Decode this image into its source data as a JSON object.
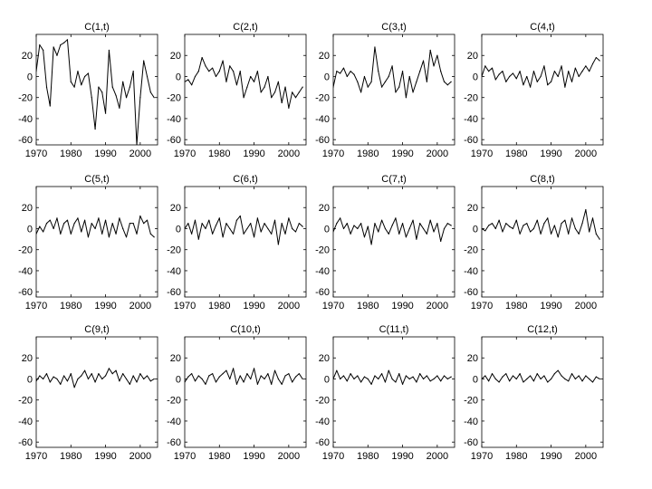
{
  "chart_data": [
    {
      "type": "line",
      "title": "C(1,t)",
      "x": [
        1970,
        1971,
        1972,
        1973,
        1974,
        1975,
        1976,
        1977,
        1978,
        1979,
        1980,
        1981,
        1982,
        1983,
        1984,
        1985,
        1986,
        1987,
        1988,
        1989,
        1990,
        1991,
        1992,
        1993,
        1994,
        1995,
        1996,
        1997,
        1998,
        1999,
        2000,
        2001,
        2002,
        2003,
        2004
      ],
      "y": [
        5,
        30,
        25,
        -10,
        -28,
        28,
        20,
        30,
        32,
        35,
        -5,
        -10,
        5,
        -8,
        0,
        3,
        -20,
        -50,
        -10,
        -15,
        -35,
        25,
        -10,
        -18,
        -30,
        -5,
        -20,
        -10,
        5,
        -65,
        -20,
        15,
        0,
        -15,
        -20
      ],
      "xlim": [
        1970,
        2005
      ],
      "ylim": [
        -65,
        40
      ],
      "xticks": [
        1970,
        1980,
        1990,
        2000
      ],
      "yticks": [
        20,
        0,
        -20,
        -40,
        -60
      ],
      "xtick_labels": [
        "1970",
        "1980",
        "1990",
        "2000"
      ],
      "ytick_labels": [
        "20",
        "0",
        "-20",
        "-40",
        "-60"
      ]
    },
    {
      "type": "line",
      "title": "C(2,t)",
      "x": [
        1970,
        1971,
        1972,
        1973,
        1974,
        1975,
        1976,
        1977,
        1978,
        1979,
        1980,
        1981,
        1982,
        1983,
        1984,
        1985,
        1986,
        1987,
        1988,
        1989,
        1990,
        1991,
        1992,
        1993,
        1994,
        1995,
        1996,
        1997,
        1998,
        1999,
        2000,
        2001,
        2002,
        2003,
        2004
      ],
      "y": [
        -5,
        -3,
        -8,
        0,
        5,
        18,
        10,
        5,
        8,
        0,
        5,
        15,
        -5,
        10,
        5,
        -8,
        5,
        -20,
        -10,
        0,
        -5,
        5,
        -15,
        -10,
        0,
        -20,
        -15,
        -5,
        -25,
        -10,
        -30,
        -15,
        -20,
        -15,
        -10
      ],
      "xlim": [
        1970,
        2005
      ],
      "ylim": [
        -65,
        40
      ],
      "xticks": [
        1970,
        1980,
        1990,
        2000
      ],
      "yticks": [
        20,
        0,
        -20,
        -40,
        -60
      ],
      "xtick_labels": [
        "1970",
        "1980",
        "1990",
        "2000"
      ],
      "ytick_labels": [
        "20",
        "0",
        "-20",
        "-40",
        "-60"
      ]
    },
    {
      "type": "line",
      "title": "C(3,t)",
      "x": [
        1970,
        1971,
        1972,
        1973,
        1974,
        1975,
        1976,
        1977,
        1978,
        1979,
        1980,
        1981,
        1982,
        1983,
        1984,
        1985,
        1986,
        1987,
        1988,
        1989,
        1990,
        1991,
        1992,
        1993,
        1994,
        1995,
        1996,
        1997,
        1998,
        1999,
        2000,
        2001,
        2002,
        2003,
        2004
      ],
      "y": [
        -10,
        5,
        3,
        8,
        0,
        5,
        2,
        -5,
        -15,
        0,
        -10,
        -5,
        28,
        5,
        -10,
        -5,
        0,
        10,
        -15,
        -10,
        5,
        -20,
        0,
        -15,
        -5,
        5,
        15,
        -5,
        25,
        10,
        20,
        5,
        -5,
        -8,
        -5
      ],
      "xlim": [
        1970,
        2005
      ],
      "ylim": [
        -65,
        40
      ],
      "xticks": [
        1970,
        1980,
        1990,
        2000
      ],
      "yticks": [
        20,
        0,
        -20,
        -40,
        -60
      ],
      "xtick_labels": [
        "1970",
        "1980",
        "1990",
        "2000"
      ],
      "ytick_labels": [
        "20",
        "0",
        "-20",
        "-40",
        "-60"
      ]
    },
    {
      "type": "line",
      "title": "C(4,t)",
      "x": [
        1970,
        1971,
        1972,
        1973,
        1974,
        1975,
        1976,
        1977,
        1978,
        1979,
        1980,
        1981,
        1982,
        1983,
        1984,
        1985,
        1986,
        1987,
        1988,
        1989,
        1990,
        1991,
        1992,
        1993,
        1994,
        1995,
        1996,
        1997,
        1998,
        1999,
        2000,
        2001,
        2002,
        2003,
        2004
      ],
      "y": [
        0,
        10,
        5,
        8,
        -3,
        2,
        5,
        -5,
        0,
        3,
        -2,
        5,
        -8,
        0,
        -10,
        5,
        -5,
        0,
        10,
        -8,
        -5,
        5,
        0,
        10,
        -10,
        5,
        -5,
        8,
        0,
        5,
        10,
        5,
        12,
        18,
        15
      ],
      "xlim": [
        1970,
        2005
      ],
      "ylim": [
        -65,
        40
      ],
      "xticks": [
        1970,
        1980,
        1990,
        2000
      ],
      "yticks": [
        20,
        0,
        -20,
        -40,
        -60
      ],
      "xtick_labels": [
        "1970",
        "1980",
        "1990",
        "2000"
      ],
      "ytick_labels": [
        "20",
        "0",
        "-20",
        "-40",
        "-60"
      ]
    },
    {
      "type": "line",
      "title": "C(5,t)",
      "x": [
        1970,
        1971,
        1972,
        1973,
        1974,
        1975,
        1976,
        1977,
        1978,
        1979,
        1980,
        1981,
        1982,
        1983,
        1984,
        1985,
        1986,
        1987,
        1988,
        1989,
        1990,
        1991,
        1992,
        1993,
        1994,
        1995,
        1996,
        1997,
        1998,
        1999,
        2000,
        2001,
        2002,
        2003,
        2004
      ],
      "y": [
        -5,
        2,
        -3,
        5,
        8,
        0,
        10,
        -5,
        5,
        8,
        -5,
        5,
        10,
        -3,
        8,
        -8,
        5,
        0,
        10,
        -5,
        8,
        -8,
        5,
        -5,
        10,
        0,
        -8,
        5,
        5,
        -5,
        12,
        5,
        8,
        -5,
        -8
      ],
      "xlim": [
        1970,
        2005
      ],
      "ylim": [
        -65,
        40
      ],
      "xticks": [
        1970,
        1980,
        1990,
        2000
      ],
      "yticks": [
        20,
        0,
        -20,
        -40,
        -60
      ],
      "xtick_labels": [
        "1970",
        "1980",
        "1990",
        "2000"
      ],
      "ytick_labels": [
        "20",
        "0",
        "-20",
        "-40",
        "-60"
      ]
    },
    {
      "type": "line",
      "title": "C(6,t)",
      "x": [
        1970,
        1971,
        1972,
        1973,
        1974,
        1975,
        1976,
        1977,
        1978,
        1979,
        1980,
        1981,
        1982,
        1983,
        1984,
        1985,
        1986,
        1987,
        1988,
        1989,
        1990,
        1991,
        1992,
        1993,
        1994,
        1995,
        1996,
        1997,
        1998,
        1999,
        2000,
        2001,
        2002,
        2003,
        2004
      ],
      "y": [
        0,
        5,
        -5,
        8,
        -10,
        5,
        0,
        8,
        -5,
        3,
        10,
        -8,
        5,
        0,
        -5,
        8,
        12,
        -5,
        0,
        5,
        -8,
        10,
        -3,
        5,
        0,
        -5,
        8,
        -15,
        5,
        -5,
        10,
        0,
        -3,
        5,
        2
      ],
      "xlim": [
        1970,
        2005
      ],
      "ylim": [
        -65,
        40
      ],
      "xticks": [
        1970,
        1980,
        1990,
        2000
      ],
      "yticks": [
        20,
        0,
        -20,
        -40,
        -60
      ],
      "xtick_labels": [
        "1970",
        "1980",
        "1990",
        "2000"
      ],
      "ytick_labels": [
        "20",
        "0",
        "-20",
        "-40",
        "-60"
      ]
    },
    {
      "type": "line",
      "title": "C(7,t)",
      "x": [
        1970,
        1971,
        1972,
        1973,
        1974,
        1975,
        1976,
        1977,
        1978,
        1979,
        1980,
        1981,
        1982,
        1983,
        1984,
        1985,
        1986,
        1987,
        1988,
        1989,
        1990,
        1991,
        1992,
        1993,
        1994,
        1995,
        1996,
        1997,
        1998,
        1999,
        2000,
        2001,
        2002,
        2003,
        2004
      ],
      "y": [
        -3,
        5,
        10,
        0,
        5,
        -5,
        3,
        0,
        5,
        -8,
        2,
        -15,
        5,
        -3,
        8,
        0,
        -5,
        3,
        10,
        -5,
        5,
        -8,
        0,
        8,
        -10,
        5,
        0,
        -5,
        8,
        -3,
        5,
        -12,
        0,
        5,
        3
      ],
      "xlim": [
        1970,
        2005
      ],
      "ylim": [
        -65,
        40
      ],
      "xticks": [
        1970,
        1980,
        1990,
        2000
      ],
      "yticks": [
        20,
        0,
        -20,
        -40,
        -60
      ],
      "xtick_labels": [
        "1970",
        "1980",
        "1990",
        "2000"
      ],
      "ytick_labels": [
        "20",
        "0",
        "-20",
        "-40",
        "-60"
      ]
    },
    {
      "type": "line",
      "title": "C(8,t)",
      "x": [
        1970,
        1971,
        1972,
        1973,
        1974,
        1975,
        1976,
        1977,
        1978,
        1979,
        1980,
        1981,
        1982,
        1983,
        1984,
        1985,
        1986,
        1987,
        1988,
        1989,
        1990,
        1991,
        1992,
        1993,
        1994,
        1995,
        1996,
        1997,
        1998,
        1999,
        2000,
        2001,
        2002,
        2003,
        2004
      ],
      "y": [
        0,
        -2,
        3,
        5,
        0,
        8,
        -3,
        5,
        2,
        0,
        8,
        -5,
        3,
        5,
        -3,
        0,
        8,
        -5,
        5,
        10,
        -5,
        3,
        -8,
        5,
        8,
        -5,
        10,
        0,
        -5,
        5,
        18,
        -3,
        10,
        -5,
        -10
      ],
      "xlim": [
        1970,
        2005
      ],
      "ylim": [
        -65,
        40
      ],
      "xticks": [
        1970,
        1980,
        1990,
        2000
      ],
      "yticks": [
        20,
        0,
        -20,
        -40,
        -60
      ],
      "xtick_labels": [
        "1970",
        "1980",
        "1990",
        "2000"
      ],
      "ytick_labels": [
        "20",
        "0",
        "-20",
        "-40",
        "-60"
      ]
    },
    {
      "type": "line",
      "title": "C(9,t)",
      "x": [
        1970,
        1971,
        1972,
        1973,
        1974,
        1975,
        1976,
        1977,
        1978,
        1979,
        1980,
        1981,
        1982,
        1983,
        1984,
        1985,
        1986,
        1987,
        1988,
        1989,
        1990,
        1991,
        1992,
        1993,
        1994,
        1995,
        1996,
        1997,
        1998,
        1999,
        2000,
        2001,
        2002,
        2003,
        2004
      ],
      "y": [
        -2,
        3,
        0,
        5,
        -3,
        2,
        0,
        -5,
        3,
        -2,
        5,
        -8,
        0,
        3,
        8,
        0,
        5,
        -3,
        5,
        0,
        3,
        10,
        5,
        8,
        -2,
        5,
        0,
        -5,
        3,
        -3,
        5,
        0,
        3,
        -2,
        0
      ],
      "xlim": [
        1970,
        2005
      ],
      "ylim": [
        -65,
        40
      ],
      "xticks": [
        1970,
        1980,
        1990,
        2000
      ],
      "yticks": [
        20,
        0,
        -20,
        -40,
        -60
      ],
      "xtick_labels": [
        "1970",
        "1980",
        "1990",
        "2000"
      ],
      "ytick_labels": [
        "20",
        "0",
        "-20",
        "-40",
        "-60"
      ]
    },
    {
      "type": "line",
      "title": "C(10,t)",
      "x": [
        1970,
        1971,
        1972,
        1973,
        1974,
        1975,
        1976,
        1977,
        1978,
        1979,
        1980,
        1981,
        1982,
        1983,
        1984,
        1985,
        1986,
        1987,
        1988,
        1989,
        1990,
        1991,
        1992,
        1993,
        1994,
        1995,
        1996,
        1997,
        1998,
        1999,
        2000,
        2001,
        2002,
        2003,
        2004
      ],
      "y": [
        -3,
        2,
        5,
        -2,
        3,
        0,
        -5,
        3,
        5,
        -3,
        2,
        5,
        8,
        0,
        10,
        -5,
        3,
        -3,
        5,
        0,
        10,
        -5,
        3,
        0,
        5,
        -5,
        8,
        0,
        -5,
        3,
        5,
        -3,
        2,
        5,
        0
      ],
      "xlim": [
        1970,
        2005
      ],
      "ylim": [
        -65,
        40
      ],
      "xticks": [
        1970,
        1980,
        1990,
        2000
      ],
      "yticks": [
        20,
        0,
        -20,
        -40,
        -60
      ],
      "xtick_labels": [
        "1970",
        "1980",
        "1990",
        "2000"
      ],
      "ytick_labels": [
        "20",
        "0",
        "-20",
        "-40",
        "-60"
      ]
    },
    {
      "type": "line",
      "title": "C(11,t)",
      "x": [
        1970,
        1971,
        1972,
        1973,
        1974,
        1975,
        1976,
        1977,
        1978,
        1979,
        1980,
        1981,
        1982,
        1983,
        1984,
        1985,
        1986,
        1987,
        1988,
        1989,
        1990,
        1991,
        1992,
        1993,
        1994,
        1995,
        1996,
        1997,
        1998,
        1999,
        2000,
        2001,
        2002,
        2003,
        2004
      ],
      "y": [
        0,
        8,
        0,
        3,
        -2,
        5,
        0,
        3,
        -3,
        2,
        0,
        -5,
        3,
        0,
        5,
        -3,
        8,
        0,
        -3,
        5,
        -5,
        3,
        0,
        2,
        -3,
        5,
        0,
        3,
        -2,
        0,
        3,
        -2,
        3,
        0,
        2
      ],
      "xlim": [
        1970,
        2005
      ],
      "ylim": [
        -65,
        40
      ],
      "xticks": [
        1970,
        1980,
        1990,
        2000
      ],
      "yticks": [
        20,
        0,
        -20,
        -40,
        -60
      ],
      "xtick_labels": [
        "1970",
        "1980",
        "1990",
        "2000"
      ],
      "ytick_labels": [
        "20",
        "0",
        "-20",
        "-40",
        "-60"
      ]
    },
    {
      "type": "line",
      "title": "C(12,t)",
      "x": [
        1970,
        1971,
        1972,
        1973,
        1974,
        1975,
        1976,
        1977,
        1978,
        1979,
        1980,
        1981,
        1982,
        1983,
        1984,
        1985,
        1986,
        1987,
        1988,
        1989,
        1990,
        1991,
        1992,
        1993,
        1994,
        1995,
        1996,
        1997,
        1998,
        1999,
        2000,
        2001,
        2002,
        2003,
        2004
      ],
      "y": [
        0,
        3,
        -2,
        5,
        0,
        -3,
        2,
        5,
        -2,
        3,
        0,
        5,
        -3,
        0,
        3,
        -2,
        5,
        0,
        3,
        -3,
        0,
        5,
        8,
        3,
        0,
        -2,
        5,
        0,
        3,
        -2,
        3,
        0,
        -3,
        2,
        0
      ],
      "xlim": [
        1970,
        2005
      ],
      "ylim": [
        -65,
        40
      ],
      "xticks": [
        1970,
        1980,
        1990,
        2000
      ],
      "yticks": [
        20,
        0,
        -20,
        -40,
        -60
      ],
      "xtick_labels": [
        "1970",
        "1980",
        "1990",
        "2000"
      ],
      "ytick_labels": [
        "20",
        "0",
        "-20",
        "-40",
        "-60"
      ]
    }
  ]
}
